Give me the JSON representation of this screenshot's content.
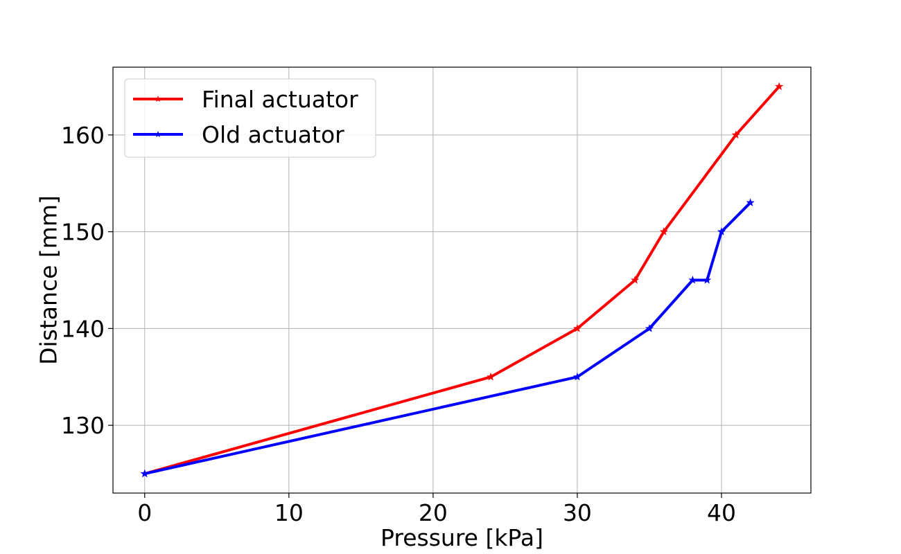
{
  "chart_data": {
    "type": "line",
    "title": "",
    "xlabel": "Pressure [kPa]",
    "ylabel": "Distance [mm]",
    "xlim": [
      -2.2,
      46.2
    ],
    "ylim": [
      123,
      167
    ],
    "xticks": [
      0,
      10,
      20,
      30,
      40
    ],
    "yticks": [
      130,
      140,
      150,
      160
    ],
    "grid": true,
    "legend_position": "top-left",
    "series": [
      {
        "name": "Final actuator",
        "color": "#ff0000",
        "marker": "star",
        "points": [
          [
            0,
            125
          ],
          [
            24,
            135
          ],
          [
            30,
            140
          ],
          [
            34,
            145
          ],
          [
            36,
            150
          ],
          [
            41,
            160
          ],
          [
            44,
            165
          ]
        ]
      },
      {
        "name": "Old actuator",
        "color": "#0000ff",
        "marker": "star",
        "points": [
          [
            0,
            125
          ],
          [
            30,
            135
          ],
          [
            35,
            140
          ],
          [
            38,
            145
          ],
          [
            39,
            145
          ],
          [
            40,
            150
          ],
          [
            42,
            153
          ]
        ]
      }
    ]
  }
}
